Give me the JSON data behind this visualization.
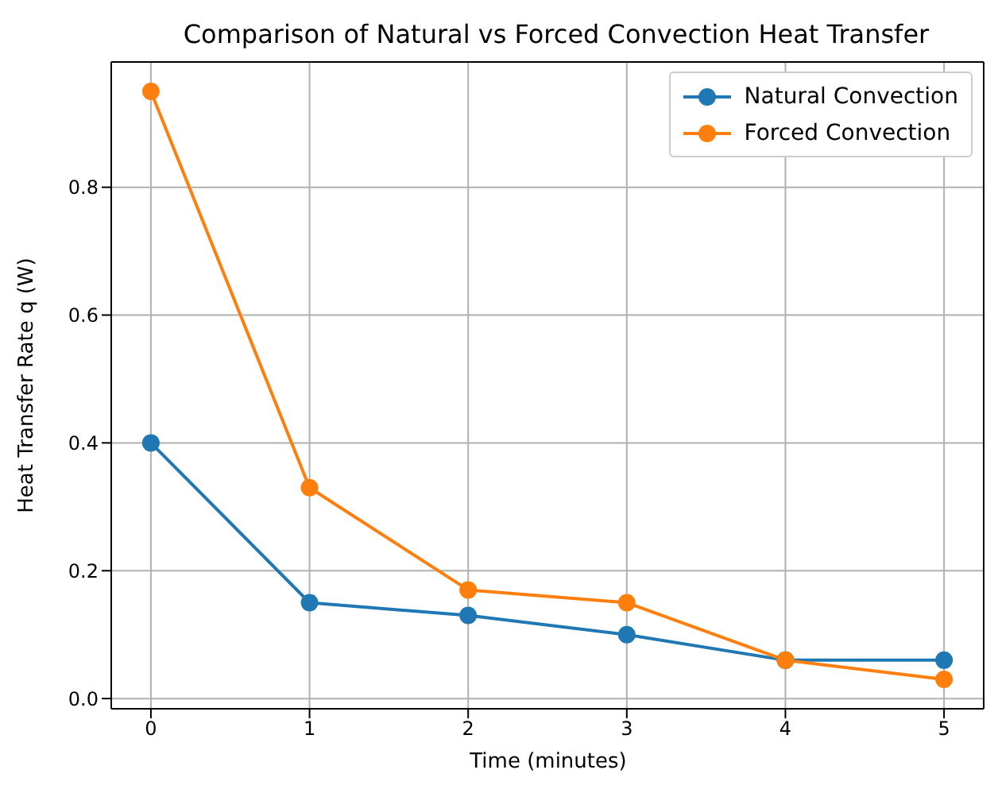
{
  "chart_data": {
    "type": "line",
    "title": "Comparison of Natural vs Forced Convection Heat Transfer",
    "xlabel": "Time (minutes)",
    "ylabel": "Heat Transfer Rate q (W)",
    "x": [
      0,
      1,
      2,
      3,
      4,
      5
    ],
    "series": [
      {
        "name": "Natural Convection",
        "color": "#1f77b4",
        "values": [
          0.4,
          0.15,
          0.13,
          0.1,
          0.06,
          0.06
        ]
      },
      {
        "name": "Forced Convection",
        "color": "#ff7f0e",
        "values": [
          0.95,
          0.33,
          0.17,
          0.15,
          0.06,
          0.03
        ]
      }
    ],
    "xlim": [
      -0.25,
      5.25
    ],
    "ylim": [
      -0.016,
      0.996
    ],
    "xticks": [
      0,
      1,
      2,
      3,
      4,
      5
    ],
    "yticks": [
      {
        "value": 0,
        "label": "0.0"
      },
      {
        "value": 0.2,
        "label": "0.2"
      },
      {
        "value": 0.4,
        "label": "0.4"
      },
      {
        "value": 0.6,
        "label": "0.6"
      },
      {
        "value": 0.8,
        "label": "0.8"
      }
    ],
    "grid": true,
    "legend": "top right",
    "marker": "circle"
  }
}
